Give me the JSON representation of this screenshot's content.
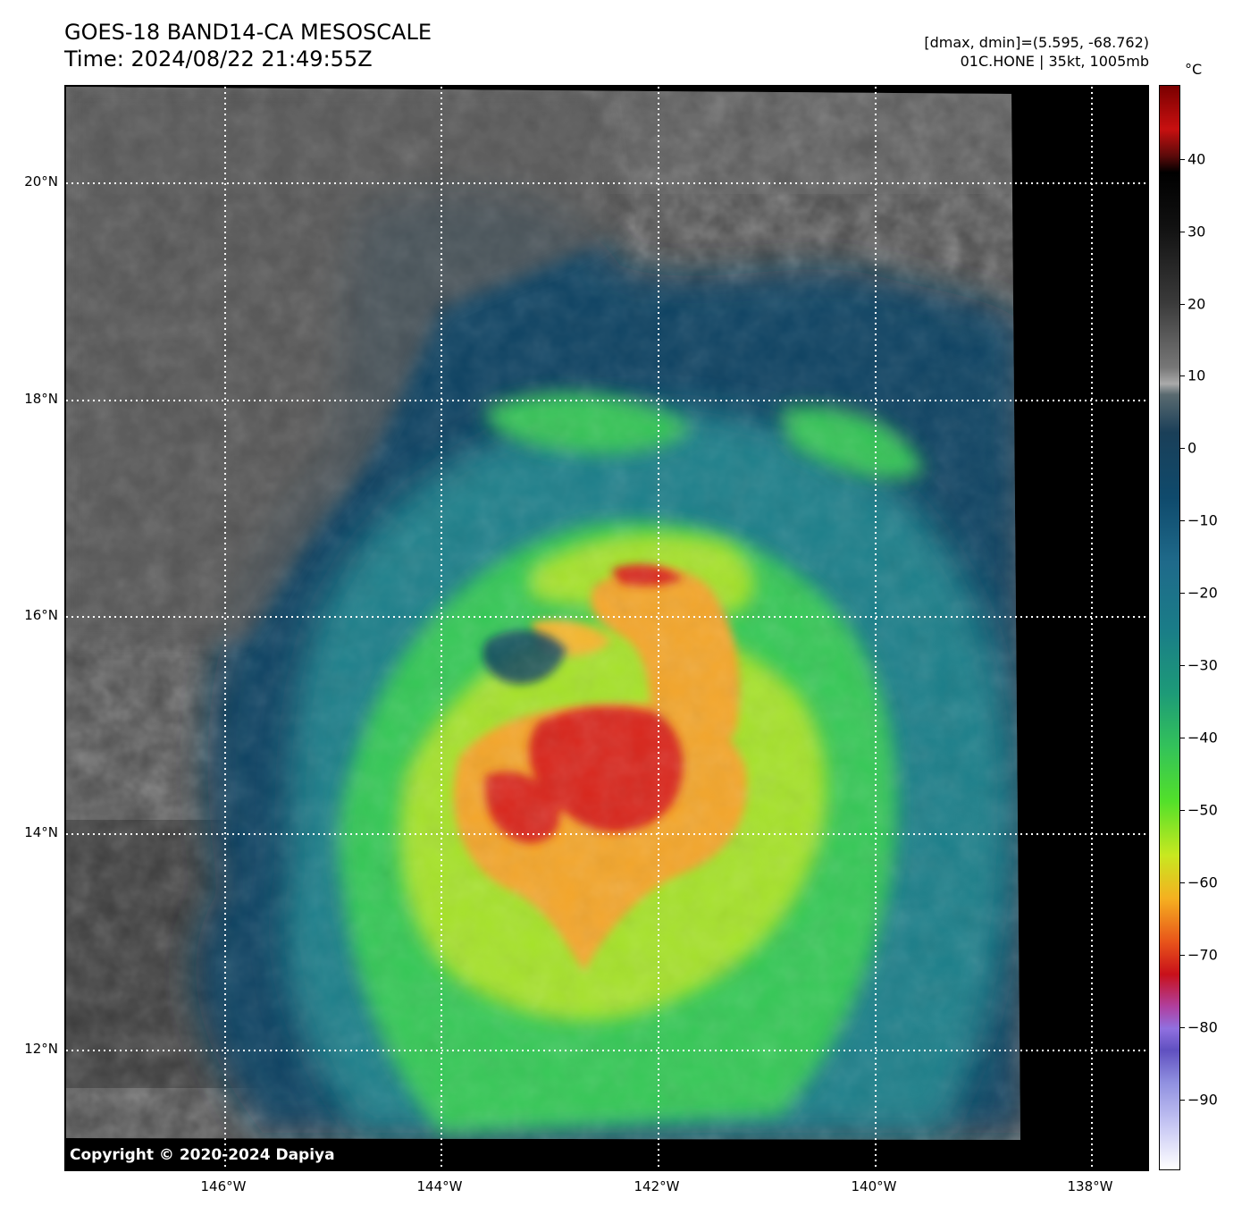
{
  "header": {
    "title_line1": "GOES-18 BAND14-CA MESOSCALE",
    "title_line2": "Time: 2024/08/22 21:49:55Z",
    "info_line1": "[dmax, dmin]=(5.595, -68.762)",
    "info_line2": "01C.HONE | 35kt, 1005mb"
  },
  "map": {
    "copyright": "Copyright © 2020-2024 Dapiya",
    "lat_labels": [
      "20°N",
      "18°N",
      "16°N",
      "14°N",
      "12°N"
    ],
    "lon_labels": [
      "146°W",
      "144°W",
      "142°W",
      "140°W",
      "138°W"
    ],
    "storm": "01C.HONE",
    "colors": {
      "gray_cloud": "#5a5a5a",
      "dark_blue": "#0d3f5e",
      "teal": "#1f8a8f",
      "green": "#3ed35a",
      "yellow_green": "#b6e52a",
      "orange": "#f7a22b",
      "red": "#d9261a"
    }
  },
  "colorbar": {
    "unit": "°C",
    "ticks": [
      "40",
      "30",
      "20",
      "10",
      "0",
      "−10",
      "−20",
      "−30",
      "−40",
      "−50",
      "−60",
      "−70",
      "−80",
      "−90"
    ]
  }
}
